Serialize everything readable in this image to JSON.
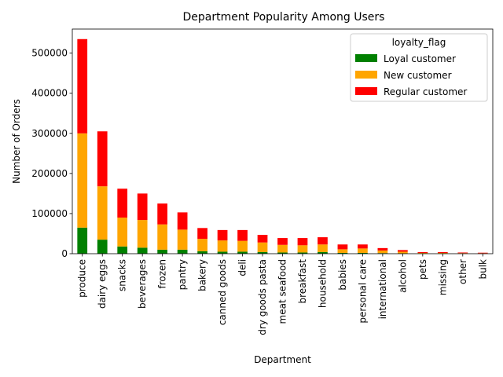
{
  "chart_data": {
    "type": "bar",
    "stacked": true,
    "title": "Department Popularity Among Users",
    "xlabel": "Department",
    "ylabel": "Number of Orders",
    "ylim": [
      0,
      560000
    ],
    "yticks": [
      0,
      100000,
      200000,
      300000,
      400000,
      500000
    ],
    "categories": [
      "produce",
      "dairy eggs",
      "snacks",
      "beverages",
      "frozen",
      "pantry",
      "bakery",
      "canned goods",
      "deli",
      "dry goods pasta",
      "meat seafood",
      "breakfast",
      "household",
      "babies",
      "personal care",
      "international",
      "alcohol",
      "pets",
      "missing",
      "other",
      "bulk"
    ],
    "legend": {
      "title": "loyalty_flag",
      "position": "top-right"
    },
    "series": [
      {
        "name": "Loyal customer",
        "color": "#008000",
        "values": [
          65000,
          35000,
          18000,
          15000,
          10000,
          10000,
          6000,
          5000,
          5000,
          4000,
          3000,
          3000,
          4000,
          2000,
          2000,
          1500,
          800,
          500,
          500,
          300,
          300
        ]
      },
      {
        "name": "New customer",
        "color": "#FFA500",
        "values": [
          235000,
          133000,
          72000,
          69000,
          63000,
          50000,
          31000,
          28000,
          27000,
          24000,
          19000,
          18000,
          19000,
          9000,
          11000,
          6500,
          4200,
          1500,
          1500,
          1200,
          900
        ]
      },
      {
        "name": "Regular customer",
        "color": "#FF0000",
        "values": [
          235000,
          137000,
          72000,
          66000,
          52000,
          43000,
          27000,
          26000,
          27000,
          19000,
          17000,
          18000,
          18000,
          12000,
          10000,
          6000,
          4000,
          2000,
          2000,
          1500,
          1300
        ]
      }
    ]
  }
}
